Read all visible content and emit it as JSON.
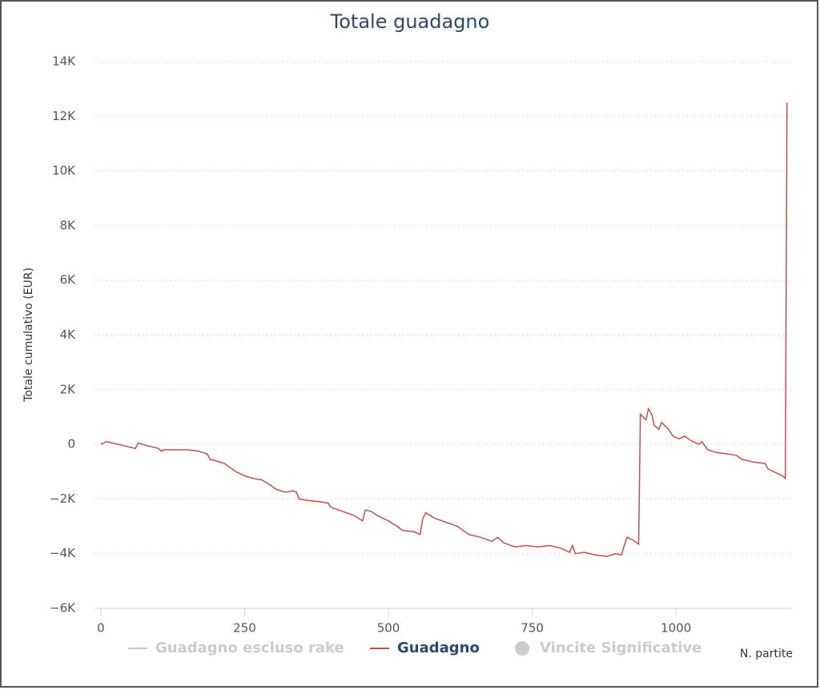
{
  "chart_data": {
    "type": "line",
    "title": "Totale guadagno",
    "y_label": "Totale cumulativo (EUR)",
    "x_label": "N. partite",
    "xlim": [
      -11,
      1203
    ],
    "xticks": [
      0,
      250,
      500,
      750,
      1000
    ],
    "ylim": [
      -6000,
      14000
    ],
    "yticks": [
      {
        "value": -6000,
        "label": "−6K"
      },
      {
        "value": -4000,
        "label": "−4K"
      },
      {
        "value": -2000,
        "label": "−2K"
      },
      0,
      {
        "value": 2000,
        "label": "2K"
      },
      {
        "value": 4000,
        "label": "4K"
      },
      {
        "value": 6000,
        "label": "6K"
      },
      {
        "value": 8000,
        "label": "8K"
      },
      {
        "value": 10000,
        "label": "10K"
      },
      {
        "value": 12000,
        "label": "12K"
      },
      {
        "value": 14000,
        "label": "14K"
      }
    ],
    "grid": true,
    "x": [
      0,
      10,
      20,
      30,
      40,
      50,
      60,
      65,
      80,
      100,
      105,
      110,
      130,
      150,
      170,
      185,
      190,
      200,
      215,
      225,
      235,
      250,
      265,
      280,
      295,
      305,
      320,
      335,
      340,
      345,
      360,
      380,
      395,
      400,
      420,
      440,
      455,
      460,
      470,
      480,
      500,
      515,
      525,
      545,
      555,
      560,
      565,
      580,
      600,
      620,
      640,
      660,
      680,
      690,
      700,
      720,
      740,
      760,
      780,
      800,
      815,
      820,
      825,
      840,
      860,
      880,
      895,
      905,
      910,
      915,
      925,
      935,
      938,
      948,
      952,
      958,
      962,
      970,
      975,
      985,
      995,
      1005,
      1015,
      1025,
      1040,
      1045,
      1055,
      1070,
      1090,
      1105,
      1115,
      1135,
      1155,
      1160,
      1175,
      1185,
      1190,
      1193
    ],
    "series": [
      {
        "name": "Guadagno escluso rake",
        "color": "#cccccc",
        "symbol": "line",
        "visible": false
      },
      {
        "name": "Guadagno",
        "color": "#c0504d",
        "symbol": "line",
        "visible": true,
        "values": [
          0,
          100,
          50,
          0,
          -50,
          -100,
          -150,
          50,
          -50,
          -150,
          -250,
          -200,
          -200,
          -200,
          -250,
          -350,
          -550,
          -600,
          -700,
          -850,
          -1000,
          -1150,
          -1250,
          -1300,
          -1500,
          -1650,
          -1750,
          -1700,
          -1750,
          -2000,
          -2050,
          -2100,
          -2150,
          -2300,
          -2450,
          -2600,
          -2800,
          -2400,
          -2450,
          -2600,
          -2800,
          -3000,
          -3150,
          -3200,
          -3300,
          -2700,
          -2500,
          -2700,
          -2850,
          -3000,
          -3300,
          -3400,
          -3550,
          -3400,
          -3600,
          -3750,
          -3700,
          -3750,
          -3700,
          -3800,
          -3950,
          -3700,
          -4000,
          -3950,
          -4050,
          -4100,
          -4000,
          -4050,
          -3700,
          -3400,
          -3500,
          -3650,
          1100,
          900,
          1300,
          1100,
          700,
          550,
          800,
          600,
          300,
          200,
          300,
          150,
          0,
          100,
          -200,
          -300,
          -350,
          -400,
          -550,
          -650,
          -700,
          -900,
          -1050,
          -1150,
          -1250,
          12500
        ]
      },
      {
        "name": "Vincite Significative",
        "color": "#cccccc",
        "symbol": "circle",
        "visible": false
      }
    ]
  }
}
